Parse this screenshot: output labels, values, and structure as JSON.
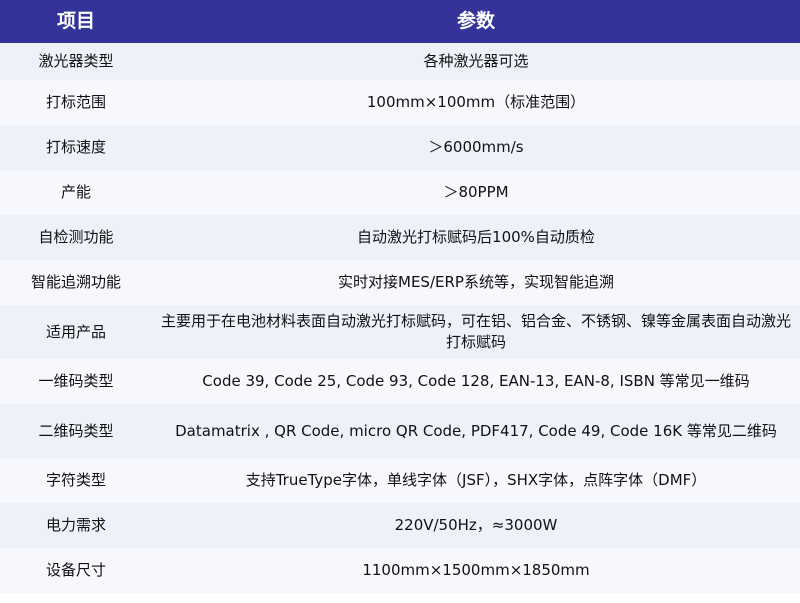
{
  "header": {
    "col1": "项目",
    "col2": "参数"
  },
  "rows": [
    {
      "item": "激光器类型",
      "value": "各种激光器可选"
    },
    {
      "item": "打标范围",
      "value": "100mm×100mm（标准范围）"
    },
    {
      "item": "打标速度",
      "value": "＞6000mm/s"
    },
    {
      "item": "产能",
      "value": "＞80PPM"
    },
    {
      "item": "自检测功能",
      "value": "自动激光打标赋码后100%自动质检"
    },
    {
      "item": "智能追溯功能",
      "value": "实时对接MES/ERP系统等，实现智能追溯"
    },
    {
      "item": "适用产品",
      "value": "主要用于在电池材料表面自动激光打标赋码，可在铝、铝合金、不锈钢、镍等金属表面自动激光打标赋码"
    },
    {
      "item": "一维码类型",
      "value": "Code 39, Code 25, Code 93,  Code 128, EAN-13, EAN-8, ISBN 等常见一维码"
    },
    {
      "item": "二维码类型",
      "value": "Datamatrix , QR Code, micro QR Code, PDF417,  Code 49, Code 16K 等常见二维码"
    },
    {
      "item": "字符类型",
      "value": "支持TrueType字体，单线字体（JSF），SHX字体，点阵字体（DMF）"
    },
    {
      "item": "电力需求",
      "value": "220V/50Hz，≈3000W"
    },
    {
      "item": "设备尺寸",
      "value": "1100mm×1500mm×1850mm"
    }
  ],
  "colors": {
    "header_bg": "#333399",
    "row_odd": "#edf2fa",
    "row_even": "#f6f8fd"
  }
}
